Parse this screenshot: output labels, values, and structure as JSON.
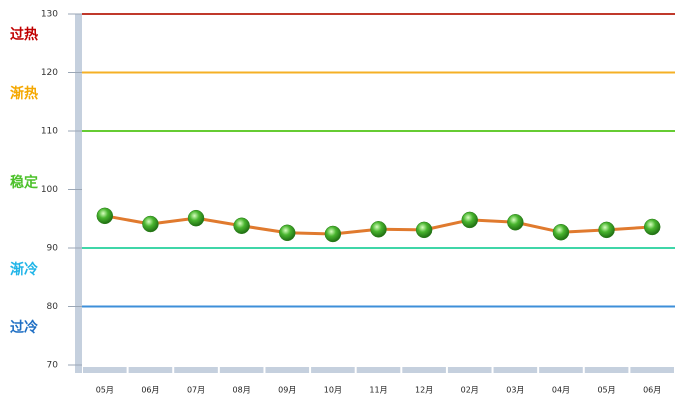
{
  "chart_data": {
    "type": "line",
    "categories": [
      "05月",
      "06月",
      "07月",
      "08月",
      "09月",
      "10月",
      "11月",
      "12月",
      "02月",
      "03月",
      "04月",
      "05月",
      "06月"
    ],
    "series": [
      {
        "color": "#e07a2e",
        "marker_color": "#3aa52a",
        "values": [
          95.5,
          94.1,
          95.1,
          93.8,
          92.6,
          92.4,
          93.2,
          93.1,
          94.8,
          94.4,
          92.7,
          93.1,
          93.6
        ]
      }
    ],
    "ylim": [
      70,
      130
    ],
    "yticks": [
      70,
      80,
      90,
      100,
      110,
      120,
      130
    ],
    "reference_lines": [
      {
        "value": 130,
        "color": "#c0392b"
      },
      {
        "value": 120,
        "color": "#f5b025"
      },
      {
        "value": 110,
        "color": "#66cc33"
      },
      {
        "value": 90,
        "color": "#3fd6a8"
      },
      {
        "value": 80,
        "color": "#3d8fd9"
      }
    ],
    "bands": [
      {
        "label": "过热",
        "color": "#c00000"
      },
      {
        "label": "渐热",
        "color": "#f5a800"
      },
      {
        "label": "稳定",
        "color": "#4cc12a"
      },
      {
        "label": "渐冷",
        "color": "#21b5e8"
      },
      {
        "label": "过冷",
        "color": "#1f6fc4"
      }
    ]
  }
}
